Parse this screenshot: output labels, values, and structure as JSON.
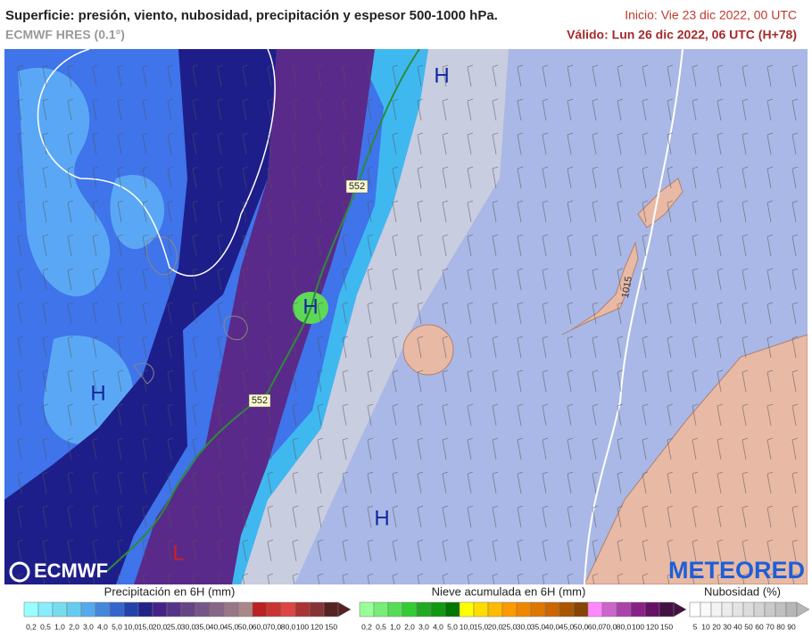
{
  "header": {
    "title": "Superficie: presión, viento, nubosidad, precipitación y espesor 500-1000 hPa.",
    "model": "ECMWF HRES (0.1°)",
    "start": "Inicio: Vie 23 dic 2022, 00 UTC",
    "valid": "Válido: Lun 26 dic 2022, 06 UTC (H+78)"
  },
  "map": {
    "centers": [
      {
        "label": "H"
      },
      {
        "label": "H"
      },
      {
        "label": "H"
      },
      {
        "label": "H"
      },
      {
        "label": "L"
      }
    ],
    "thickness": [
      "552",
      "552"
    ],
    "isobar": "1015"
  },
  "logos": {
    "ecmwf": "ECMWF",
    "meteored": "METEORED"
  },
  "legends": [
    {
      "title": "Precipitación en 6H (mm)",
      "labels": [
        "0,2",
        "0,5",
        "1,0",
        "2,0",
        "3,0",
        "4,0",
        "5,0",
        "10,0",
        "15,0",
        "20,0",
        "25,0",
        "30,0",
        "35,0",
        "40,0",
        "45,0",
        "50,0",
        "60,0",
        "70,0",
        "80,0",
        "100",
        "120",
        "150"
      ]
    },
    {
      "title": "Nieve acumulada en 6H (mm)",
      "labels": [
        "0,2",
        "0,5",
        "1,0",
        "2,0",
        "3,0",
        "4,0",
        "5,0",
        "10,0",
        "15,0",
        "20,0",
        "25,0",
        "30,0",
        "35,0",
        "40,0",
        "45,0",
        "50,0",
        "60,0",
        "70,0",
        "80,0",
        "100",
        "120",
        "150"
      ]
    },
    {
      "title": "Nubosidad (%)",
      "labels": [
        "5",
        "10",
        "20",
        "30",
        "40",
        "50",
        "60",
        "70",
        "80",
        "90"
      ]
    }
  ]
}
